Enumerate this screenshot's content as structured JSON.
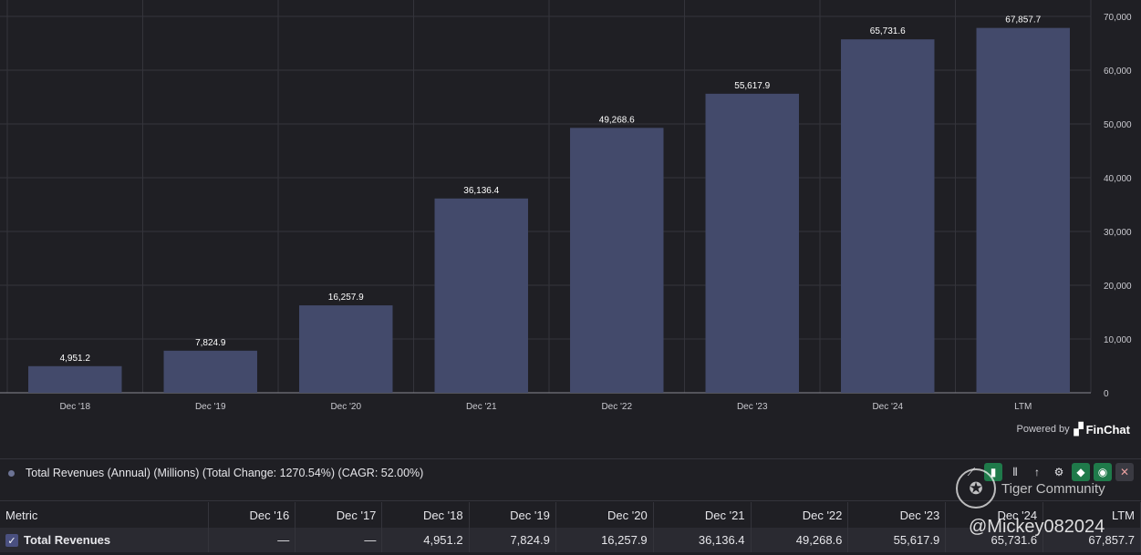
{
  "chart_data": {
    "type": "bar",
    "categories": [
      "Dec '18",
      "Dec '19",
      "Dec '20",
      "Dec '21",
      "Dec '22",
      "Dec '23",
      "Dec '24",
      "LTM"
    ],
    "values": [
      4951.2,
      7824.9,
      16257.9,
      36136.4,
      49268.6,
      55617.9,
      65731.6,
      67857.7
    ],
    "value_labels": [
      "4,951.2",
      "7,824.9",
      "16,257.9",
      "36,136.4",
      "49,268.6",
      "55,617.9",
      "65,731.6",
      "67,857.7"
    ],
    "y_ticks": [
      0,
      10000,
      20000,
      30000,
      40000,
      50000,
      60000,
      70000
    ],
    "y_tick_labels": [
      "0",
      "10,000",
      "20,000",
      "30,000",
      "40,000",
      "50,000",
      "60,000",
      "70,000"
    ],
    "ylim": [
      0,
      70000
    ],
    "y_axis_side": "right",
    "grid": true,
    "bar_color": "#434a6b"
  },
  "powered_by": {
    "label": "Powered by",
    "brand": "FinChat"
  },
  "legend": {
    "text": "Total Revenues (Annual) (Millions) (Total Change: 1270.54%) (CAGR: 52.00%)"
  },
  "toolbar": {
    "icons": [
      "line-chart-icon",
      "bar-chart-icon",
      "stacked-bar-icon",
      "sort-icon",
      "gear-icon",
      "tag-icon",
      "eye-icon",
      "close-icon"
    ]
  },
  "table": {
    "headers": [
      "Metric",
      "Dec '16",
      "Dec '17",
      "Dec '18",
      "Dec '19",
      "Dec '20",
      "Dec '21",
      "Dec '22",
      "Dec '23",
      "Dec '24",
      "LTM"
    ],
    "rows": [
      {
        "metric": "Total Revenues",
        "checked": true,
        "values": [
          "—",
          "—",
          "4,951.2",
          "7,824.9",
          "16,257.9",
          "36,136.4",
          "49,268.6",
          "55,617.9",
          "65,731.6",
          "67,857.7"
        ]
      }
    ]
  },
  "watermark": {
    "community": "Tiger Community",
    "handle": "@Mickey082024"
  }
}
